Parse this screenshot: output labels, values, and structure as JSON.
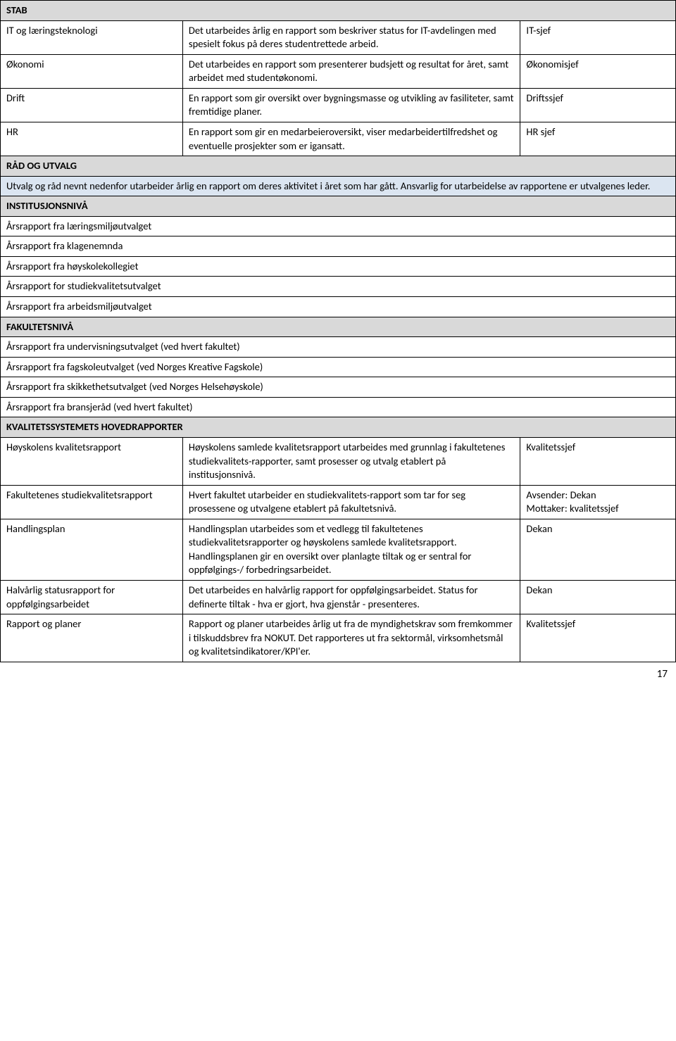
{
  "colors": {
    "gray_header": "#d9d9d9",
    "blue_highlight": "#dbe5f1",
    "border": "#000000",
    "text": "#000000",
    "background": "#ffffff"
  },
  "typography": {
    "font_family": "Calibri",
    "base_size_pt": 11,
    "line_height": 1.35
  },
  "stab": {
    "header": "STAB",
    "rows": [
      {
        "label": "IT og læringsteknologi",
        "desc": "Det utarbeides årlig en rapport som beskriver status for IT-avdelingen med spesielt fokus på deres studentrettede arbeid.",
        "owner": "IT-sjef"
      },
      {
        "label": "Økonomi",
        "desc": "Det utarbeides en rapport som presenterer budsjett og resultat for året, samt arbeidet med studentøkonomi.",
        "owner": "Økonomisjef"
      },
      {
        "label": "Drift",
        "desc": "En rapport som gir oversikt over bygningsmasse og utvikling av fasiliteter, samt fremtidige planer.",
        "owner": "Driftssjef"
      },
      {
        "label": "HR",
        "desc": "En rapport som gir en medarbeieroversikt, viser medarbeidertilfredshet og eventuelle prosjekter som er igansatt.",
        "owner": "HR sjef"
      }
    ]
  },
  "rad": {
    "header": "RÅD OG UTVALG",
    "note": "Utvalg og råd nevnt nedenfor utarbeider årlig en rapport om deres aktivitet i året som har gått. Ansvarlig for utarbeidelse av rapportene er utvalgenes leder.",
    "inst_header": "INSTITUSJONSNIVÅ",
    "inst_rows": [
      "Årsrapport fra læringsmiljøutvalget",
      "Årsrapport fra klagenemnda",
      "Årsrapport fra høyskolekollegiet",
      "Årsrapport for studiekvalitetsutvalget",
      "Årsrapport fra arbeidsmiljøutvalget"
    ],
    "fak_header": "FAKULTETSNIVÅ",
    "fak_rows": [
      "Årsrapport fra undervisningsutvalget (ved hvert fakultet)",
      "Årsrapport fra fagskoleutvalget (ved Norges Kreative Fagskole)",
      "Årsrapport fra skikkethetsutvalget (ved Norges Helsehøyskole)",
      "Årsrapport fra bransjeråd (ved hvert fakultet)"
    ]
  },
  "kvalitet": {
    "header": "KVALITETSSYSTEMETS HOVEDRAPPORTER",
    "rows": [
      {
        "label": "Høyskolens kvalitetsrapport",
        "desc": "Høyskolens samlede kvalitetsrapport utarbeides med grunnlag i fakultetenes studiekvalitets-rapporter, samt prosesser og utvalg etablert på institusjonsnivå.",
        "owner": "Kvalitetssjef"
      },
      {
        "label": "Fakultetenes studiekvalitetsrapport",
        "desc": "Hvert fakultet utarbeider en studiekvalitets-rapport som tar for seg prosessene og utvalgene etablert på fakultetsnivå.",
        "owner": "Avsender: Dekan\nMottaker: kvalitetssjef"
      },
      {
        "label": "Handlingsplan",
        "desc": "Handlingsplan utarbeides som et vedlegg til fakultetenes studiekvalitetsrapporter og høyskolens samlede kvalitetsrapport. Handlingsplanen gir en oversikt over planlagte tiltak og er sentral for oppfølgings-/ forbedringsarbeidet.",
        "owner": "Dekan"
      },
      {
        "label": "Halvårlig statusrapport for oppfølgingsarbeidet",
        "desc": "Det utarbeides en halvårlig rapport for oppfølgingsarbeidet. Status for definerte tiltak - hva er gjort, hva gjenstår - presenteres.",
        "owner": "Dekan"
      },
      {
        "label": "Rapport og planer",
        "desc": "Rapport og planer utarbeides årlig ut fra de myndighetskrav som fremkommer i tilskuddsbrev fra NOKUT. Det rapporteres ut fra sektormål, virksomhetsmål og kvalitetsindikatorer/KPI'er.",
        "owner": "Kvalitetssjef"
      }
    ]
  },
  "page_number": "17"
}
